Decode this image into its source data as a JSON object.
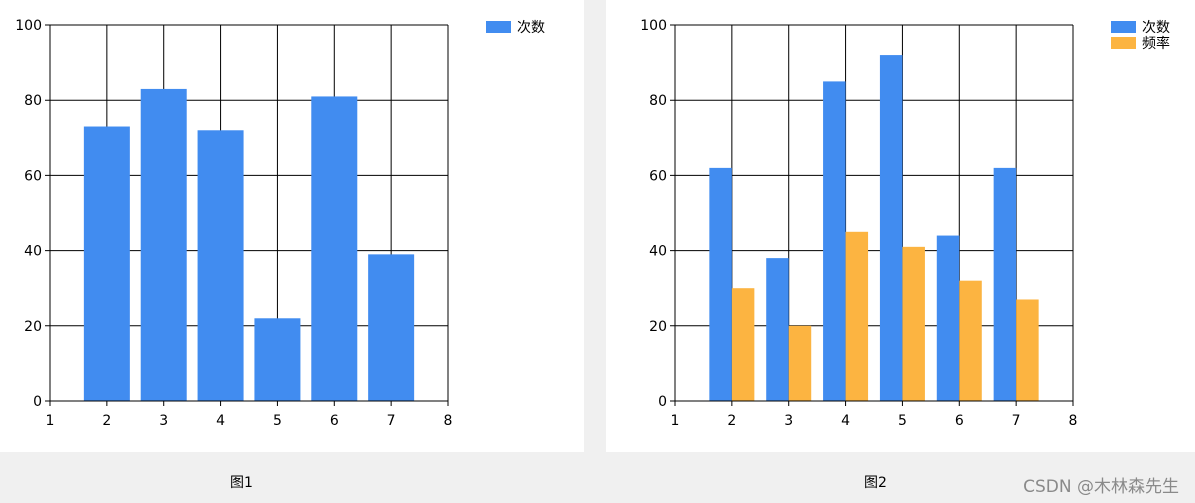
{
  "colors": {
    "series_1": "#418cf0",
    "series_2": "#fcb441",
    "grid": "#000000",
    "panel_bg": "#ffffff",
    "page_bg": "#f0f0f0",
    "watermark": "#8a8a8a"
  },
  "captions": {
    "chart1": "图1",
    "chart2": "图2"
  },
  "watermark": "CSDN @木林森先生",
  "chart_data": [
    {
      "type": "bar",
      "title": "",
      "xlabel": "",
      "ylabel": "",
      "xlim": [
        1,
        8
      ],
      "ylim": [
        0,
        100
      ],
      "xticks": [
        "1",
        "2",
        "3",
        "4",
        "5",
        "6",
        "7",
        "8"
      ],
      "yticks": [
        "0",
        "20",
        "40",
        "60",
        "80",
        "100"
      ],
      "grid": true,
      "legend_position": "top-right",
      "categories": [
        2,
        3,
        4,
        5,
        6,
        7
      ],
      "series": [
        {
          "name": "次数",
          "color": "#418cf0",
          "values": [
            73,
            83,
            72,
            22,
            81,
            39
          ]
        }
      ]
    },
    {
      "type": "bar",
      "title": "",
      "xlabel": "",
      "ylabel": "",
      "xlim": [
        1,
        8
      ],
      "ylim": [
        0,
        100
      ],
      "xticks": [
        "1",
        "2",
        "3",
        "4",
        "5",
        "6",
        "7",
        "8"
      ],
      "yticks": [
        "0",
        "20",
        "40",
        "60",
        "80",
        "100"
      ],
      "grid": true,
      "legend_position": "top-right",
      "categories": [
        2,
        3,
        4,
        5,
        6,
        7
      ],
      "series": [
        {
          "name": "次数",
          "color": "#418cf0",
          "values": [
            62,
            38,
            85,
            92,
            44,
            62
          ]
        },
        {
          "name": "频率",
          "color": "#fcb441",
          "values": [
            30,
            20,
            45,
            41,
            32,
            27
          ]
        }
      ]
    }
  ]
}
